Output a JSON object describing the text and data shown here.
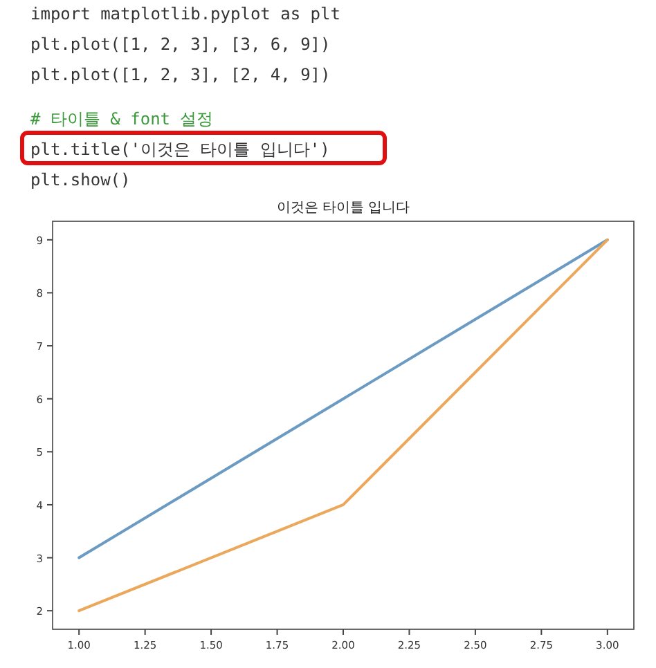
{
  "chart_data": {
    "type": "line",
    "title": "이것은 타이틀 입니다",
    "annotations": [
      "import matplotlib.pyplot as plt",
      "plt.plot([1, 2, 3], [3, 6, 9])",
      "plt.plot([1, 2, 3], [2, 4, 9])",
      "# 타이틀 & font 설정",
      "plt.title('이것은 타이틀 입니다')",
      "plt.show()"
    ],
    "series": [
      {
        "color": "#6b9bc3",
        "x": [
          1,
          2,
          3
        ],
        "values": [
          3,
          6,
          9
        ]
      },
      {
        "color": "#eba75a",
        "x": [
          1,
          2,
          3
        ],
        "values": [
          2,
          4,
          9
        ]
      }
    ],
    "xlim": [
      0.9,
      3.1
    ],
    "ylim": [
      1.65,
      9.35
    ],
    "xticks": [
      {
        "value": 1,
        "label": "1.00"
      },
      {
        "value": 1.25,
        "label": "1.25"
      },
      {
        "value": 1.5,
        "label": "1.50"
      },
      {
        "value": 1.75,
        "label": "1.75"
      },
      {
        "value": 2,
        "label": "2.00"
      },
      {
        "value": 2.25,
        "label": "2.25"
      },
      {
        "value": 2.5,
        "label": "2.50"
      },
      {
        "value": 2.75,
        "label": "2.75"
      },
      {
        "value": 3,
        "label": "3.00"
      }
    ],
    "yticks": [
      2,
      3,
      4,
      5,
      6,
      7,
      8,
      9
    ],
    "grid": false,
    "line_style": "solid",
    "marker": "none"
  }
}
